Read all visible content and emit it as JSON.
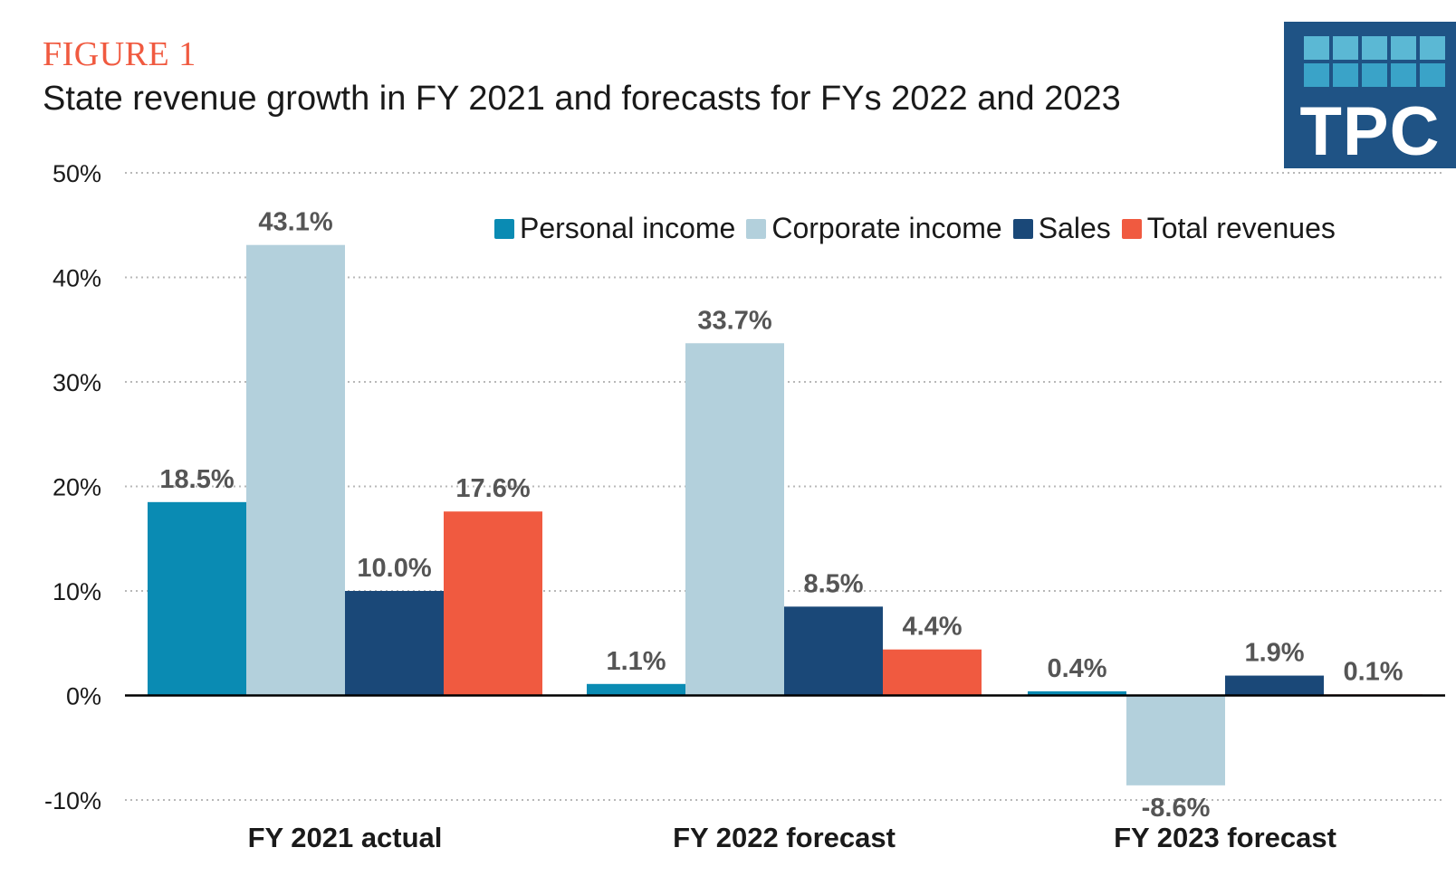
{
  "figure_label": "FIGURE 1",
  "logo": {
    "text": "TPC",
    "icon": "tpc-logo-icon"
  },
  "chart_data": {
    "type": "bar",
    "title": "State revenue growth in FY 2021 and forecasts for FYs 2022 and 2023",
    "categories": [
      "FY 2021 actual",
      "FY 2022 forecast",
      "FY 2023 forecast"
    ],
    "series": [
      {
        "name": "Personal income",
        "color": "#0a8bb3",
        "values": [
          18.5,
          1.1,
          0.4
        ],
        "labels": [
          "18.5%",
          "1.1%",
          "0.4%"
        ]
      },
      {
        "name": "Corporate income",
        "color": "#b3d0dc",
        "values": [
          43.1,
          33.7,
          -8.6
        ],
        "labels": [
          "43.1%",
          "33.7%",
          "-8.6%"
        ]
      },
      {
        "name": "Sales",
        "color": "#1a4878",
        "values": [
          10.0,
          8.5,
          1.9
        ],
        "labels": [
          "10.0%",
          "8.5%",
          "1.9%"
        ]
      },
      {
        "name": "Total revenues",
        "color": "#f05a40",
        "values": [
          17.6,
          4.4,
          0.1
        ],
        "labels": [
          "17.6%",
          "4.4%",
          "0.1%"
        ]
      }
    ],
    "yticks": [
      {
        "value": 50,
        "label": "50%"
      },
      {
        "value": 40,
        "label": "40%"
      },
      {
        "value": 30,
        "label": "30%"
      },
      {
        "value": 20,
        "label": "20%"
      },
      {
        "value": 10,
        "label": "10%"
      },
      {
        "value": 0,
        "label": "0%"
      },
      {
        "value": -10,
        "label": "-10%"
      }
    ],
    "ylim": [
      -10,
      50
    ],
    "xlabel": "",
    "ylabel": "",
    "grid": "horizontal dotted",
    "legend_position": "top-right"
  }
}
